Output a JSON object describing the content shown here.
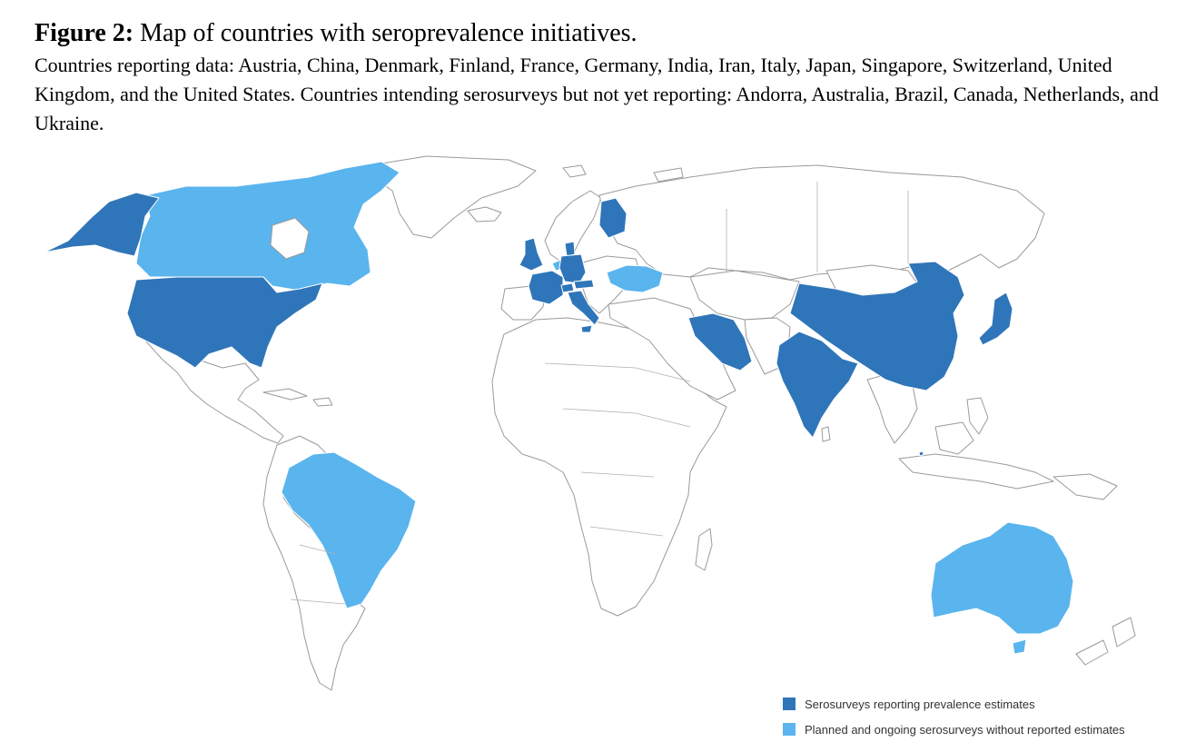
{
  "caption": {
    "label": "Figure 2:",
    "title": " Map of countries with seroprevalence initiatives.",
    "description": "Countries reporting data: Austria, China, Denmark, Finland, France, Germany, India, Iran, Italy, Japan, Singapore, Switzerland, United Kingdom, and the United States. Countries intending serosurveys but not yet reporting: Andorra, Australia, Brazil, Canada, Netherlands, and Ukraine."
  },
  "map": {
    "colors": {
      "reporting": "#2f75b9",
      "planned": "#5ab4ee",
      "other": "#ffffff",
      "border": "#9a9a9a"
    },
    "reporting_countries": [
      "Austria",
      "China",
      "Denmark",
      "Finland",
      "France",
      "Germany",
      "India",
      "Iran",
      "Italy",
      "Japan",
      "Singapore",
      "Switzerland",
      "United Kingdom",
      "United States"
    ],
    "planned_countries": [
      "Andorra",
      "Australia",
      "Brazil",
      "Canada",
      "Netherlands",
      "Ukraine"
    ]
  },
  "legend": {
    "items": [
      {
        "label": "Serosurveys reporting prevalence estimates",
        "color": "#2f75b9"
      },
      {
        "label": "Planned and ongoing serosurveys without reported estimates",
        "color": "#5ab4ee"
      }
    ]
  }
}
